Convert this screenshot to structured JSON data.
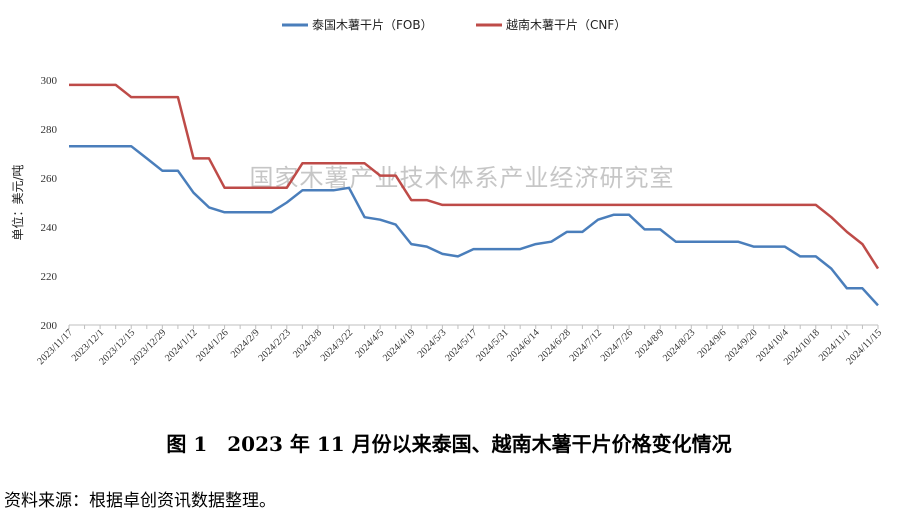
{
  "chart_data": {
    "type": "line",
    "title": "",
    "ylabel": "单位：美元/吨",
    "xlabel": "",
    "ylim": [
      200,
      300
    ],
    "yticks": [
      200,
      220,
      240,
      260,
      280,
      300
    ],
    "grid": false,
    "legend_position": "top",
    "watermark": "国家木薯产业技术体系产业经济研究室",
    "x": [
      "2023/11/17",
      "2023/11/24",
      "2023/12/1",
      "2023/12/8",
      "2023/12/15",
      "2023/12/22",
      "2023/12/29",
      "2024/1/5",
      "2024/1/12",
      "2024/1/19",
      "2024/1/26",
      "2024/2/2",
      "2024/2/9",
      "2024/2/16",
      "2024/2/23",
      "2024/3/1",
      "2024/3/8",
      "2024/3/15",
      "2024/3/22",
      "2024/3/29",
      "2024/4/5",
      "2024/4/12",
      "2024/4/19",
      "2024/4/26",
      "2024/5/3",
      "2024/5/10",
      "2024/5/17",
      "2024/5/24",
      "2024/5/31",
      "2024/6/7",
      "2024/6/14",
      "2024/6/21",
      "2024/6/28",
      "2024/7/5",
      "2024/7/12",
      "2024/7/19",
      "2024/7/26",
      "2024/8/2",
      "2024/8/9",
      "2024/8/16",
      "2024/8/23",
      "2024/8/30",
      "2024/9/6",
      "2024/9/13",
      "2024/9/20",
      "2024/9/27",
      "2024/10/4",
      "2024/10/11",
      "2024/10/18",
      "2024/10/25",
      "2024/11/1",
      "2024/11/8",
      "2024/11/15"
    ],
    "x_tick_labels": [
      "2023/11/17",
      "2023/12/1",
      "2023/12/15",
      "2023/12/29",
      "2024/1/12",
      "2024/1/26",
      "2024/2/9",
      "2024/2/23",
      "2024/3/8",
      "2024/3/22",
      "2024/4/5",
      "2024/4/19",
      "2024/5/3",
      "2024/5/17",
      "2024/5/31",
      "2024/6/14",
      "2024/6/28",
      "2024/7/12",
      "2024/7/26",
      "2024/8/9",
      "2024/8/23",
      "2024/9/6",
      "2024/9/20",
      "2024/10/4",
      "2024/10/18",
      "2024/11/1",
      "2024/11/15"
    ],
    "series": [
      {
        "name": "泰国木薯干片（FOB）",
        "color": "#4a7ebb",
        "values": [
          273,
          273,
          273,
          273,
          273,
          268,
          263,
          263,
          254,
          248,
          246,
          246,
          246,
          246,
          250,
          255,
          255,
          255,
          256,
          244,
          243,
          241,
          233,
          232,
          229,
          228,
          231,
          231,
          231,
          231,
          233,
          234,
          238,
          238,
          243,
          245,
          245,
          239,
          239,
          234,
          234,
          234,
          234,
          234,
          232,
          232,
          232,
          228,
          228,
          223,
          215,
          215,
          208
        ]
      },
      {
        "name": "越南木薯干片（CNF）",
        "color": "#be4b48",
        "values": [
          298,
          298,
          298,
          298,
          293,
          293,
          293,
          293,
          268,
          268,
          256,
          256,
          256,
          256,
          256,
          266,
          266,
          266,
          266,
          266,
          261,
          261,
          251,
          251,
          249,
          249,
          249,
          249,
          249,
          249,
          249,
          249,
          249,
          249,
          249,
          249,
          249,
          249,
          249,
          249,
          249,
          249,
          249,
          249,
          249,
          249,
          249,
          249,
          249,
          244,
          238,
          233,
          223
        ]
      }
    ]
  },
  "caption": "图 1　2023 年 11 月份以来泰国、越南木薯干片价格变化情况",
  "source": "资料来源：根据卓创资讯数据整理。"
}
